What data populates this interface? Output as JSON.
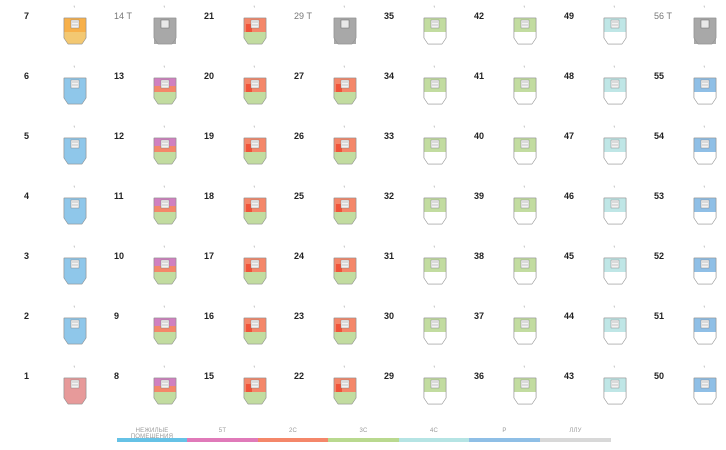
{
  "columns": [
    {
      "floors": [
        "7",
        "6",
        "5",
        "4",
        "3",
        "2",
        "1"
      ],
      "types": [
        "mixed",
        "nonres",
        "nonres",
        "nonres",
        "nonres",
        "nonres",
        "lobby"
      ]
    },
    {
      "floors": [
        "14 Т",
        "13",
        "12",
        "11",
        "10",
        "9",
        "8"
      ],
      "types": [
        "roof",
        "st",
        "st",
        "st",
        "st",
        "st",
        "st"
      ]
    },
    {
      "floors": [
        "21",
        "20",
        "19",
        "18",
        "17",
        "16",
        "15"
      ],
      "types": [
        "c2",
        "c2",
        "c2",
        "c2",
        "c2",
        "c2",
        "c2"
      ]
    },
    {
      "floors": [
        "29 Т",
        "27",
        "26",
        "25",
        "24",
        "23",
        "22"
      ],
      "types": [
        "roof",
        "c2",
        "c2",
        "c2",
        "c2",
        "c2",
        "c2"
      ]
    },
    {
      "floors": [
        "35",
        "34",
        "33",
        "32",
        "31",
        "30",
        "29"
      ],
      "types": [
        "c3",
        "c3",
        "c3",
        "c3",
        "c3",
        "c3",
        "c3"
      ]
    },
    {
      "floors": [
        "42",
        "41",
        "40",
        "39",
        "38",
        "37",
        "36"
      ],
      "types": [
        "c3",
        "c3",
        "c3",
        "c3",
        "c3",
        "c3",
        "c3"
      ]
    },
    {
      "floors": [
        "49",
        "48",
        "47",
        "46",
        "45",
        "44",
        "43"
      ],
      "types": [
        "c4",
        "c4",
        "c4",
        "c4",
        "c4",
        "c4",
        "c4"
      ]
    },
    {
      "floors": [
        "56 Т",
        "55",
        "54",
        "53",
        "52",
        "51",
        "50"
      ],
      "types": [
        "roof",
        "r",
        "r",
        "r",
        "r",
        "r",
        "r"
      ]
    }
  ],
  "legend": [
    {
      "label": "НЕЖИЛЫЕ ПОМЕЩЕНИЯ",
      "color": "#66c2e6"
    },
    {
      "label": "5Т",
      "color": "#e07ab9"
    },
    {
      "label": "2С",
      "color": "#f4876a"
    },
    {
      "label": "3С",
      "color": "#b9d98f"
    },
    {
      "label": "4С",
      "color": "#b5e4e4"
    },
    {
      "label": "Р",
      "color": "#8fbfe6"
    },
    {
      "label": "ЛЛУ",
      "color": "#d8d8d8"
    }
  ],
  "colors": {
    "nonres": "#8fc7ea",
    "st": "#d080c0",
    "c2": "#f4876a",
    "c3": "#c2dca0",
    "c4": "#bfe6e6",
    "r": "#8fbfe6",
    "roof": "#a8a8a8",
    "lobby": "#e79a9a",
    "core": "#f3f3f3"
  },
  "icons": {
    "north": "north-arrow-icon"
  }
}
